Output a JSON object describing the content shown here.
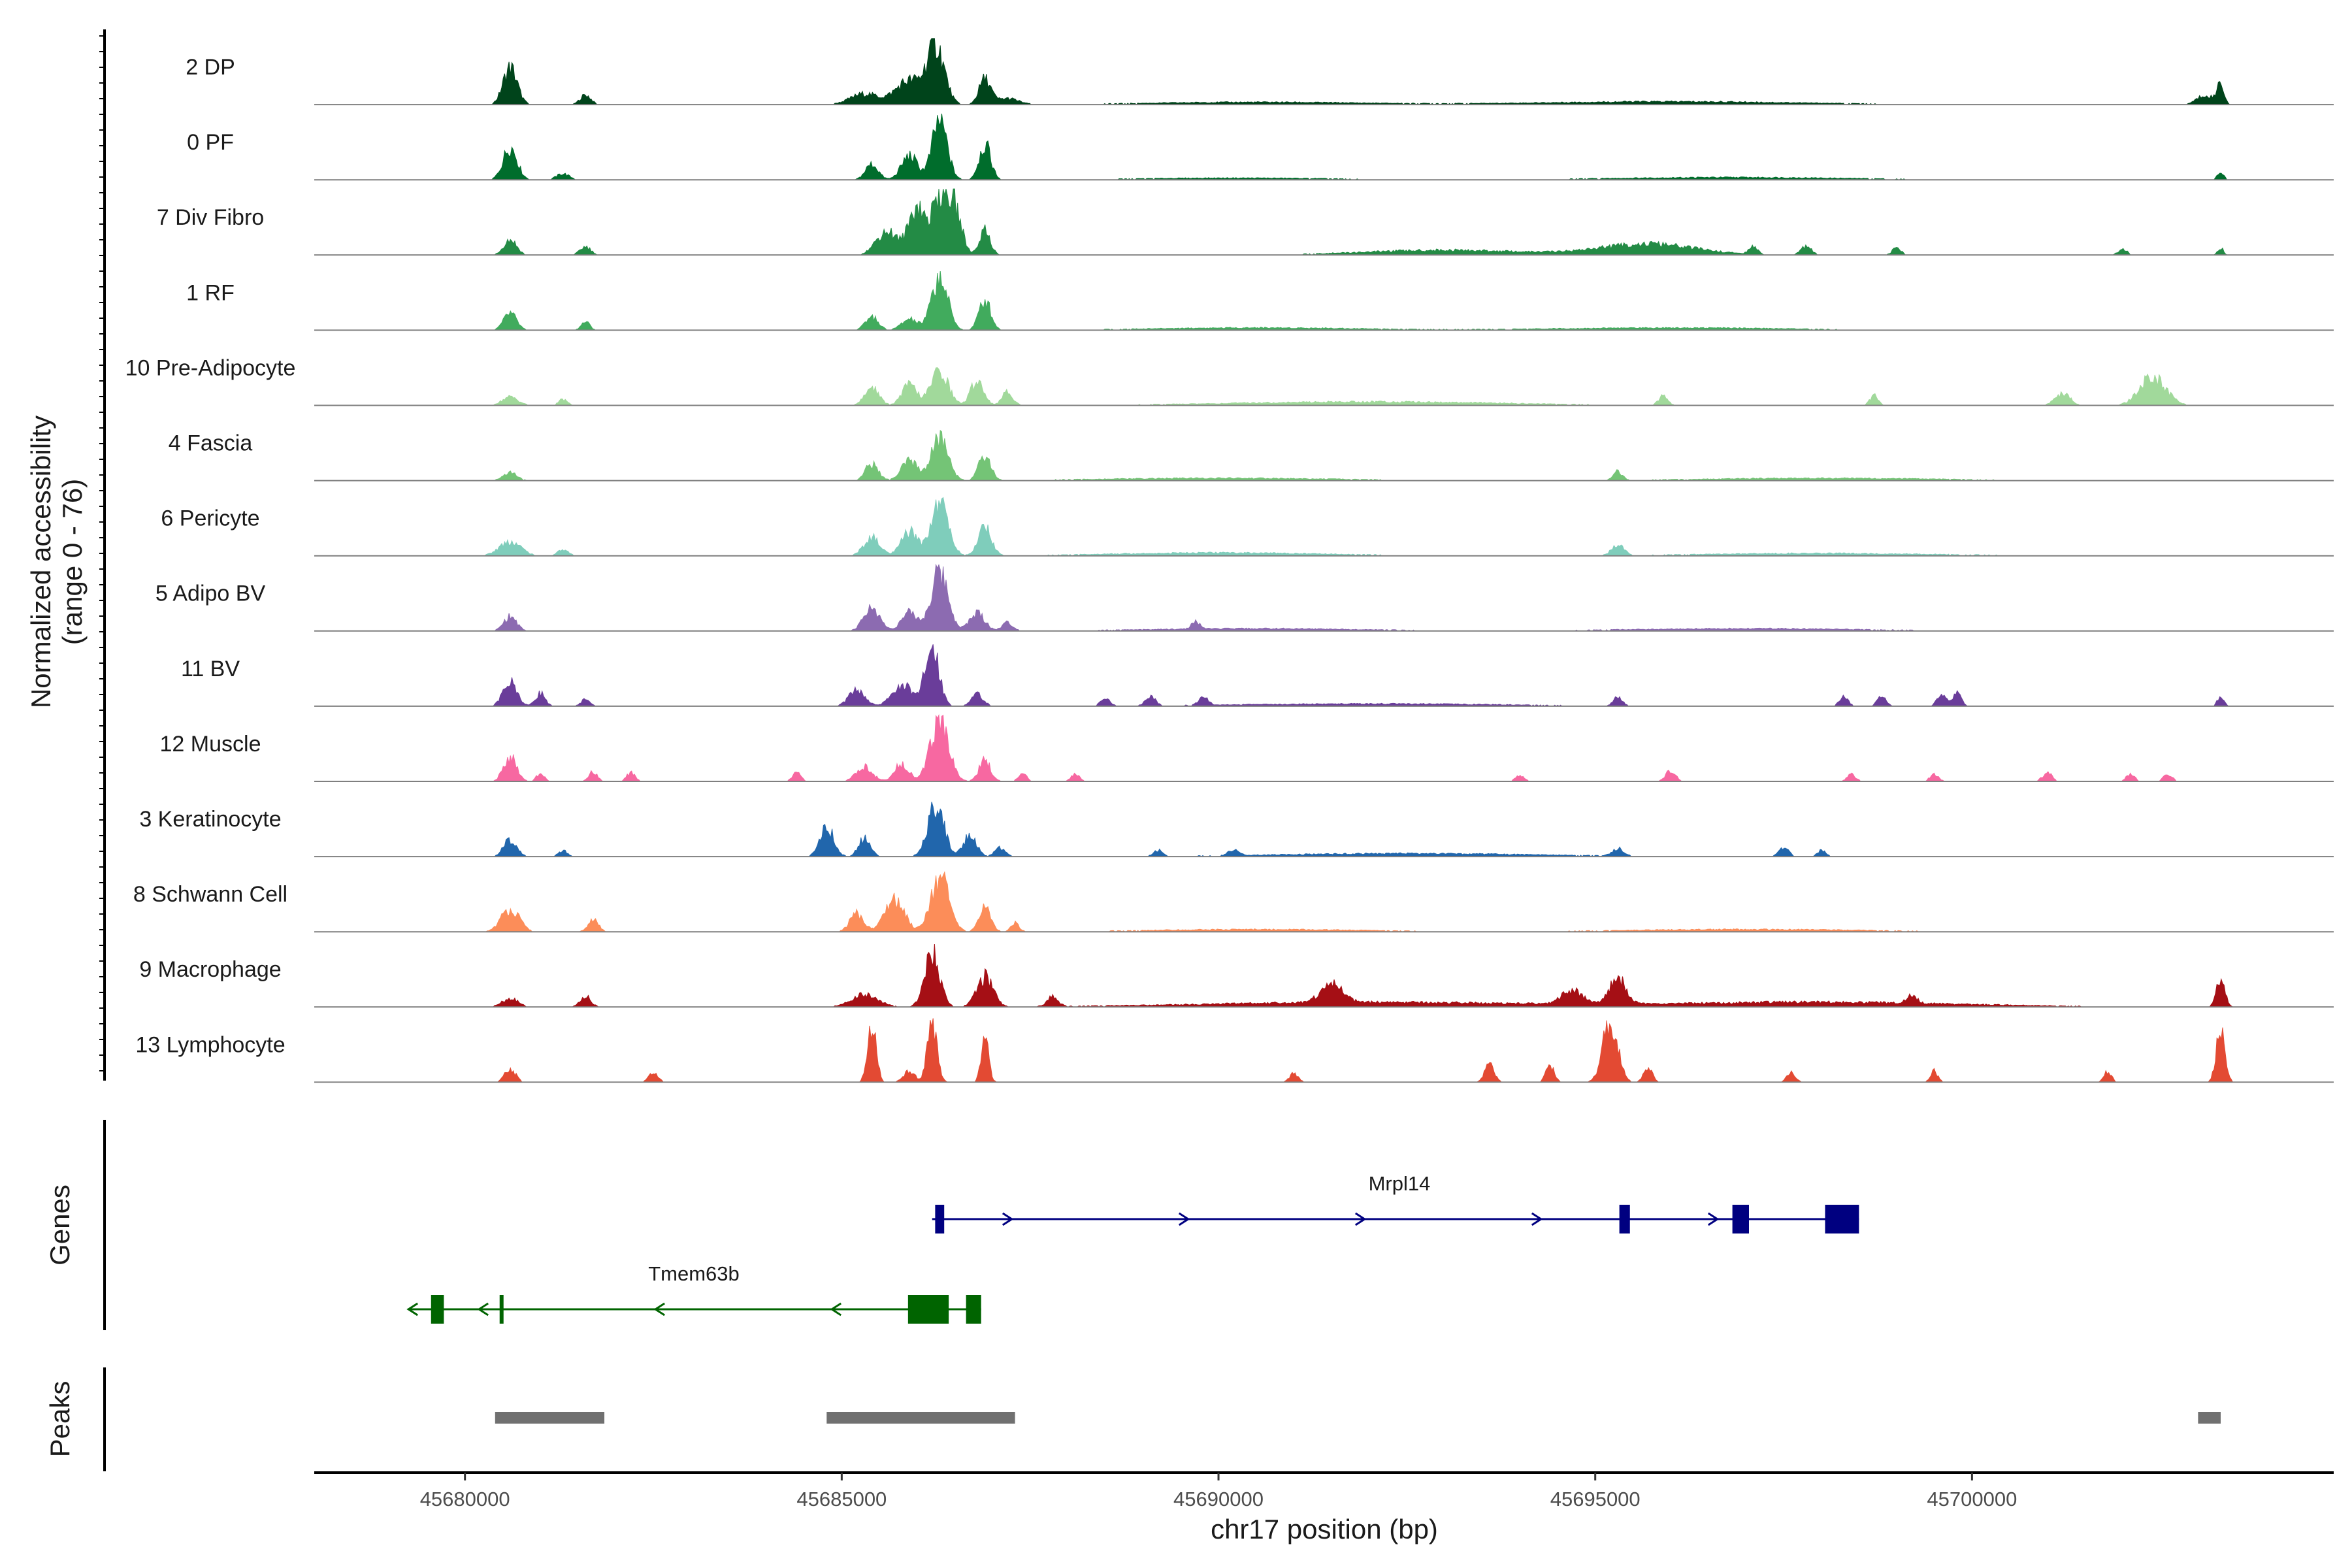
{
  "chart_data": {
    "type": "area",
    "title": "",
    "ylabel_line1": "Normalized accessibility",
    "ylabel_line2": "(range 0 - 76)",
    "y_range": [
      0,
      76
    ],
    "xlabel": "chr17 position (bp)",
    "chromosome": "chr17",
    "x_range": [
      45678000,
      45704800
    ],
    "x_ticks": [
      45680000,
      45685000,
      45690000,
      45695000,
      45700000
    ],
    "x_tick_labels": [
      "45680000",
      "45685000",
      "45690000",
      "45695000",
      "45700000"
    ],
    "tracks": [
      {
        "name": "2 DP",
        "color": "#00441b",
        "peaks": [
          [
            45680600,
            0.62,
            130
          ],
          [
            45681600,
            0.16,
            100
          ],
          [
            45685300,
            0.18,
            260
          ],
          [
            45686250,
            0.96,
            160
          ],
          [
            45685900,
            0.4,
            260
          ],
          [
            45686900,
            0.42,
            110
          ],
          [
            45687200,
            0.1,
            200
          ],
          [
            45703100,
            0.16,
            160
          ],
          [
            45703300,
            0.36,
            60
          ],
          [
            45690500,
            0.04,
            2000
          ],
          [
            45696000,
            0.05,
            2400
          ]
        ]
      },
      {
        "name": "0 PF",
        "color": "#006d2c",
        "peaks": [
          [
            45680600,
            0.55,
            130
          ],
          [
            45681300,
            0.1,
            120
          ],
          [
            45685400,
            0.26,
            120
          ],
          [
            45685900,
            0.4,
            150
          ],
          [
            45686300,
            0.98,
            140
          ],
          [
            45686900,
            0.58,
            110
          ],
          [
            45703300,
            0.12,
            60
          ],
          [
            45690200,
            0.03,
            1800
          ],
          [
            45696800,
            0.04,
            2200
          ]
        ]
      },
      {
        "name": "7 Div Fibro",
        "color": "#238b45",
        "peaks": [
          [
            45680600,
            0.26,
            120
          ],
          [
            45681600,
            0.14,
            100
          ],
          [
            45685600,
            0.4,
            200
          ],
          [
            45686000,
            0.82,
            150
          ],
          [
            45686300,
            0.98,
            140
          ],
          [
            45686500,
            0.75,
            130
          ],
          [
            45686900,
            0.42,
            100
          ],
          [
            45695700,
            0.18,
            900
          ],
          [
            45697100,
            0.12,
            80
          ],
          [
            45697800,
            0.14,
            100
          ],
          [
            45699000,
            0.12,
            80
          ],
          [
            45702000,
            0.1,
            80
          ],
          [
            45703300,
            0.12,
            50
          ],
          [
            45693000,
            0.08,
            1500
          ]
        ]
      },
      {
        "name": "1 RF",
        "color": "#41ab5d",
        "peaks": [
          [
            45680600,
            0.28,
            120
          ],
          [
            45681600,
            0.14,
            80
          ],
          [
            45685400,
            0.22,
            120
          ],
          [
            45686300,
            0.88,
            150
          ],
          [
            45686900,
            0.5,
            110
          ],
          [
            45685900,
            0.18,
            150
          ],
          [
            45690500,
            0.04,
            2000
          ],
          [
            45696000,
            0.04,
            2200
          ]
        ]
      },
      {
        "name": "10 Pre-Adipocyte",
        "color": "#a1d99b",
        "peaks": [
          [
            45680600,
            0.14,
            150
          ],
          [
            45681300,
            0.1,
            80
          ],
          [
            45685400,
            0.3,
            130
          ],
          [
            45685900,
            0.34,
            140
          ],
          [
            45686300,
            0.58,
            160
          ],
          [
            45686800,
            0.42,
            120
          ],
          [
            45687200,
            0.22,
            100
          ],
          [
            45695900,
            0.16,
            80
          ],
          [
            45698700,
            0.16,
            80
          ],
          [
            45701200,
            0.2,
            140
          ],
          [
            45702400,
            0.48,
            240
          ],
          [
            45692000,
            0.06,
            2500
          ]
        ]
      },
      {
        "name": "4 Fascia",
        "color": "#74c476",
        "peaks": [
          [
            45680600,
            0.14,
            130
          ],
          [
            45685400,
            0.28,
            120
          ],
          [
            45685900,
            0.32,
            150
          ],
          [
            45686300,
            0.7,
            160
          ],
          [
            45686900,
            0.42,
            110
          ],
          [
            45695300,
            0.14,
            80
          ],
          [
            45690000,
            0.04,
            2200
          ],
          [
            45698000,
            0.04,
            2200
          ]
        ]
      },
      {
        "name": "6 Pericyte",
        "color": "#7fcdbb",
        "peaks": [
          [
            45680600,
            0.24,
            200
          ],
          [
            45681300,
            0.1,
            100
          ],
          [
            45685400,
            0.3,
            150
          ],
          [
            45685900,
            0.4,
            150
          ],
          [
            45686300,
            0.9,
            160
          ],
          [
            45686900,
            0.48,
            120
          ],
          [
            45695300,
            0.18,
            110
          ],
          [
            45690000,
            0.05,
            2000
          ],
          [
            45698000,
            0.04,
            2200
          ]
        ]
      },
      {
        "name": "5 Adipo BV",
        "color": "#8c6bb1",
        "peaks": [
          [
            45680600,
            0.24,
            120
          ],
          [
            45685400,
            0.38,
            150
          ],
          [
            45685900,
            0.3,
            150
          ],
          [
            45686300,
            0.98,
            160
          ],
          [
            45686800,
            0.3,
            140
          ],
          [
            45687200,
            0.14,
            100
          ],
          [
            45689700,
            0.12,
            80
          ],
          [
            45690500,
            0.04,
            2000
          ],
          [
            45697000,
            0.04,
            2200
          ]
        ]
      },
      {
        "name": "11 BV",
        "color": "#6a3d9a",
        "peaks": [
          [
            45680600,
            0.4,
            130
          ],
          [
            45681000,
            0.22,
            90
          ],
          [
            45681600,
            0.12,
            80
          ],
          [
            45685200,
            0.26,
            150
          ],
          [
            45685800,
            0.36,
            180
          ],
          [
            45686200,
            1.0,
            130
          ],
          [
            45686800,
            0.2,
            110
          ],
          [
            45688500,
            0.14,
            80
          ],
          [
            45689100,
            0.16,
            90
          ],
          [
            45689800,
            0.16,
            80
          ],
          [
            45695300,
            0.14,
            80
          ],
          [
            45698300,
            0.16,
            80
          ],
          [
            45698800,
            0.16,
            80
          ],
          [
            45699600,
            0.18,
            90
          ],
          [
            45699800,
            0.22,
            80
          ],
          [
            45703300,
            0.16,
            60
          ],
          [
            45692000,
            0.04,
            2500
          ]
        ]
      },
      {
        "name": "12 Muscle",
        "color": "#f768a1",
        "peaks": [
          [
            45680600,
            0.42,
            120
          ],
          [
            45681000,
            0.12,
            80
          ],
          [
            45681700,
            0.16,
            80
          ],
          [
            45682200,
            0.14,
            80
          ],
          [
            45684400,
            0.14,
            80
          ],
          [
            45685300,
            0.24,
            150
          ],
          [
            45685800,
            0.3,
            130
          ],
          [
            45686300,
            1.0,
            170
          ],
          [
            45686900,
            0.34,
            110
          ],
          [
            45687400,
            0.12,
            80
          ],
          [
            45688100,
            0.12,
            80
          ],
          [
            45694000,
            0.1,
            80
          ],
          [
            45696000,
            0.18,
            90
          ],
          [
            45698400,
            0.12,
            80
          ],
          [
            45699500,
            0.12,
            80
          ],
          [
            45701000,
            0.14,
            90
          ],
          [
            45702100,
            0.12,
            80
          ],
          [
            45702600,
            0.12,
            80
          ]
        ]
      },
      {
        "name": "3 Keratinocyte",
        "color": "#2166ac",
        "peaks": [
          [
            45680600,
            0.28,
            120
          ],
          [
            45681300,
            0.1,
            80
          ],
          [
            45684800,
            0.5,
            130
          ],
          [
            45685300,
            0.3,
            110
          ],
          [
            45686250,
            0.88,
            150
          ],
          [
            45686700,
            0.36,
            120
          ],
          [
            45687100,
            0.14,
            100
          ],
          [
            45689200,
            0.1,
            80
          ],
          [
            45690200,
            0.1,
            90
          ],
          [
            45695300,
            0.12,
            100
          ],
          [
            45697500,
            0.16,
            90
          ],
          [
            45698000,
            0.1,
            80
          ],
          [
            45692500,
            0.05,
            2400
          ]
        ]
      },
      {
        "name": "8 Schwann Cell",
        "color": "#fc8d59",
        "peaks": [
          [
            45680600,
            0.38,
            170
          ],
          [
            45681700,
            0.2,
            100
          ],
          [
            45685200,
            0.3,
            130
          ],
          [
            45685700,
            0.55,
            180
          ],
          [
            45686300,
            0.92,
            170
          ],
          [
            45686900,
            0.4,
            110
          ],
          [
            45687300,
            0.14,
            80
          ],
          [
            45690500,
            0.04,
            2000
          ],
          [
            45697000,
            0.04,
            2200
          ]
        ]
      },
      {
        "name": "9 Macrophage",
        "color": "#a50f15",
        "peaks": [
          [
            45680600,
            0.14,
            150
          ],
          [
            45681600,
            0.18,
            100
          ],
          [
            45685300,
            0.2,
            250
          ],
          [
            45686200,
            0.88,
            140
          ],
          [
            45686900,
            0.5,
            150
          ],
          [
            45687800,
            0.16,
            100
          ],
          [
            45691500,
            0.3,
            200
          ],
          [
            45694700,
            0.22,
            200
          ],
          [
            45695300,
            0.44,
            150
          ],
          [
            45699200,
            0.14,
            90
          ],
          [
            45703300,
            0.46,
            80
          ],
          [
            45692000,
            0.08,
            3000
          ],
          [
            45698000,
            0.08,
            2600
          ]
        ]
      },
      {
        "name": "13 Lymphocyte",
        "color": "#e34a33",
        "peaks": [
          [
            45680600,
            0.22,
            100
          ],
          [
            45682500,
            0.14,
            90
          ],
          [
            45685400,
            1.0,
            80
          ],
          [
            45686200,
            0.98,
            90
          ],
          [
            45686900,
            0.7,
            70
          ],
          [
            45685900,
            0.18,
            110
          ],
          [
            45691000,
            0.14,
            80
          ],
          [
            45693600,
            0.3,
            90
          ],
          [
            45694400,
            0.26,
            80
          ],
          [
            45695200,
            1.0,
            140
          ],
          [
            45695700,
            0.24,
            80
          ],
          [
            45697600,
            0.16,
            80
          ],
          [
            45699500,
            0.18,
            70
          ],
          [
            45701800,
            0.18,
            70
          ],
          [
            45703300,
            1.0,
            80
          ]
        ]
      }
    ],
    "genes": [
      {
        "name": "Mrpl14",
        "strand": "+",
        "color": "#000080",
        "start": 45686200,
        "end": 45698500,
        "exons": [
          [
            45686240,
            45686360
          ],
          [
            45695320,
            45695460
          ],
          [
            45696820,
            45697040
          ],
          [
            45698050,
            45698500
          ]
        ]
      },
      {
        "name": "Tmem63b",
        "strand": "-",
        "color": "#006400",
        "start": 45679250,
        "end": 45686850,
        "exons": [
          [
            45679550,
            45679720
          ],
          [
            45680460,
            45680500
          ],
          [
            45685880,
            45686420
          ],
          [
            45686650,
            45686850
          ]
        ]
      }
    ],
    "peaks_label": "Peaks",
    "genes_label": "Genes",
    "peak_regions": [
      [
        45680400,
        45681850
      ],
      [
        45684800,
        45687300
      ],
      [
        45703000,
        45703300
      ]
    ],
    "peak_color": "#707070"
  }
}
